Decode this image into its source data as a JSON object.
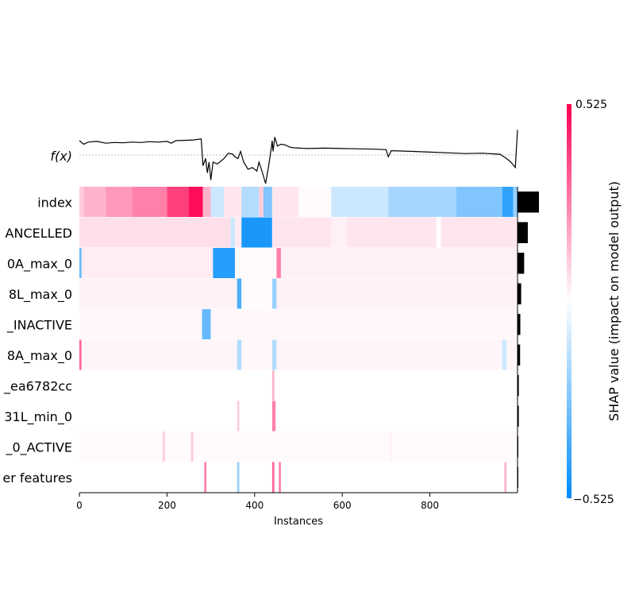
{
  "chart_data": {
    "type": "heatmap",
    "title": "",
    "xlabel": "Instances",
    "ylabel": "",
    "fx_label": "f(x)",
    "xlim": [
      0,
      1000
    ],
    "x_ticks": [
      0,
      200,
      400,
      600,
      800
    ],
    "n_instances": 1000,
    "features": [
      "index",
      "ANCELLED",
      "0A_max_0",
      "8L_max_0",
      "_INACTIVE",
      "8A_max_0",
      "_ea6782cc",
      "31L_min_0",
      "_0_ACTIVE",
      "er features"
    ],
    "feature_importance": [
      0.1,
      0.048,
      0.031,
      0.017,
      0.013,
      0.012,
      0.006,
      0.006,
      0.003,
      0.003
    ],
    "colorbar": {
      "label": "SHAP value (impact on model output)",
      "vmin": -0.525,
      "vmax": 0.525,
      "min_label": "−0.525",
      "max_label": "0.525",
      "color_low": "#008bfb",
      "color_mid": "#ffffff",
      "color_high": "#ff0052"
    },
    "heat_segments": [
      [
        [
          0,
          10,
          0.2
        ],
        [
          10,
          60,
          0.3
        ],
        [
          60,
          120,
          0.4
        ],
        [
          120,
          200,
          0.5
        ],
        [
          200,
          250,
          0.75
        ],
        [
          250,
          282,
          0.95
        ],
        [
          282,
          300,
          0.3
        ],
        [
          300,
          330,
          -0.2
        ],
        [
          330,
          370,
          0.1
        ],
        [
          370,
          410,
          -0.3
        ],
        [
          410,
          420,
          0.2
        ],
        [
          420,
          440,
          -0.5
        ],
        [
          440,
          500,
          0.1
        ],
        [
          500,
          575,
          0.02
        ],
        [
          575,
          705,
          -0.2
        ],
        [
          705,
          860,
          -0.35
        ],
        [
          860,
          965,
          -0.5
        ],
        [
          965,
          990,
          -0.8
        ],
        [
          990,
          1000,
          -0.4
        ]
      ],
      [
        [
          0,
          345,
          0.12
        ],
        [
          345,
          355,
          -0.2
        ],
        [
          355,
          370,
          0.08
        ],
        [
          370,
          440,
          -0.9
        ],
        [
          440,
          575,
          0.1
        ],
        [
          575,
          610,
          0.06
        ],
        [
          610,
          815,
          0.1
        ],
        [
          815,
          825,
          0.0
        ],
        [
          825,
          1000,
          0.1
        ]
      ],
      [
        [
          0,
          5,
          -0.6
        ],
        [
          5,
          305,
          0.07
        ],
        [
          305,
          355,
          -0.85
        ],
        [
          355,
          450,
          0.02
        ],
        [
          450,
          460,
          0.5
        ],
        [
          460,
          1000,
          0.06
        ]
      ],
      [
        [
          0,
          360,
          0.05
        ],
        [
          360,
          370,
          -0.7
        ],
        [
          370,
          440,
          0.02
        ],
        [
          440,
          450,
          -0.4
        ],
        [
          450,
          1000,
          0.05
        ]
      ],
      [
        [
          0,
          280,
          0.03
        ],
        [
          280,
          300,
          -0.6
        ],
        [
          300,
          1000,
          0.03
        ]
      ],
      [
        [
          0,
          5,
          0.6
        ],
        [
          5,
          360,
          0.04
        ],
        [
          360,
          370,
          -0.3
        ],
        [
          370,
          440,
          0.03
        ],
        [
          440,
          450,
          -0.3
        ],
        [
          450,
          965,
          0.04
        ],
        [
          965,
          975,
          -0.2
        ],
        [
          975,
          1000,
          0.04
        ]
      ],
      [
        [
          0,
          1000,
          0.0
        ],
        [
          440,
          445,
          0.3
        ]
      ],
      [
        [
          0,
          360,
          0.0
        ],
        [
          360,
          365,
          0.2
        ],
        [
          440,
          448,
          0.5
        ],
        [
          448,
          1000,
          0.0
        ]
      ],
      [
        [
          0,
          1000,
          0.02
        ],
        [
          190,
          195,
          0.2
        ],
        [
          255,
          260,
          0.2
        ],
        [
          710,
          712,
          0.1
        ]
      ],
      [
        [
          0,
          1000,
          0.0
        ],
        [
          285,
          290,
          0.5
        ],
        [
          360,
          365,
          -0.4
        ],
        [
          440,
          445,
          0.6
        ],
        [
          455,
          460,
          0.5
        ],
        [
          970,
          975,
          0.3
        ]
      ]
    ],
    "fx_points": [
      [
        0,
        0.4
      ],
      [
        10,
        0.3
      ],
      [
        20,
        0.36
      ],
      [
        40,
        0.38
      ],
      [
        60,
        0.33
      ],
      [
        80,
        0.35
      ],
      [
        100,
        0.34
      ],
      [
        120,
        0.36
      ],
      [
        140,
        0.35
      ],
      [
        160,
        0.37
      ],
      [
        180,
        0.36
      ],
      [
        200,
        0.38
      ],
      [
        210,
        0.33
      ],
      [
        220,
        0.4
      ],
      [
        240,
        0.41
      ],
      [
        260,
        0.42
      ],
      [
        278,
        0.45
      ],
      [
        282,
        -0.3
      ],
      [
        288,
        -0.1
      ],
      [
        292,
        -0.5
      ],
      [
        296,
        -0.2
      ],
      [
        300,
        -0.7
      ],
      [
        305,
        -0.2
      ],
      [
        315,
        -0.25
      ],
      [
        330,
        -0.1
      ],
      [
        340,
        0.05
      ],
      [
        350,
        0.02
      ],
      [
        355,
        -0.05
      ],
      [
        362,
        -0.1
      ],
      [
        368,
        0.1
      ],
      [
        375,
        -0.2
      ],
      [
        385,
        -0.4
      ],
      [
        395,
        -0.35
      ],
      [
        405,
        -0.45
      ],
      [
        410,
        -0.2
      ],
      [
        418,
        -0.5
      ],
      [
        425,
        -0.8
      ],
      [
        432,
        -0.3
      ],
      [
        438,
        0.2
      ],
      [
        440,
        0.4
      ],
      [
        442,
        0.1
      ],
      [
        446,
        0.5
      ],
      [
        452,
        0.25
      ],
      [
        460,
        0.3
      ],
      [
        470,
        0.28
      ],
      [
        480,
        0.22
      ],
      [
        490,
        0.2
      ],
      [
        520,
        0.18
      ],
      [
        560,
        0.19
      ],
      [
        600,
        0.18
      ],
      [
        640,
        0.17
      ],
      [
        680,
        0.16
      ],
      [
        700,
        0.15
      ],
      [
        705,
        -0.05
      ],
      [
        712,
        0.12
      ],
      [
        760,
        0.1
      ],
      [
        800,
        0.08
      ],
      [
        840,
        0.06
      ],
      [
        880,
        0.04
      ],
      [
        920,
        0.05
      ],
      [
        960,
        0.02
      ],
      [
        975,
        -0.1
      ],
      [
        985,
        -0.2
      ],
      [
        995,
        -0.35
      ],
      [
        1000,
        0.7
      ]
    ]
  }
}
